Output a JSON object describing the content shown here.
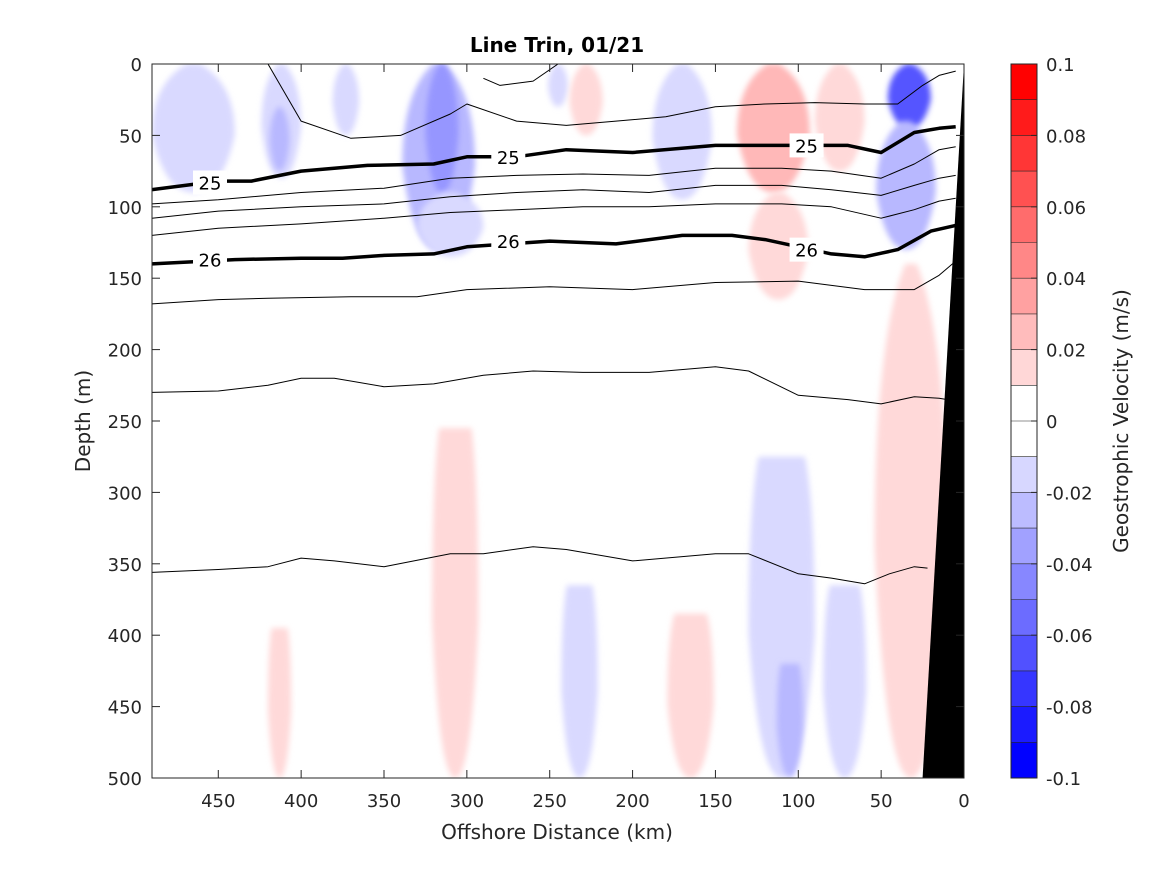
{
  "chart_data": {
    "type": "heatmap",
    "title": "Line Trin, 01/21",
    "xlabel": "Offshore Distance (km)",
    "ylabel": "Depth (m)",
    "xlim": [
      490,
      0
    ],
    "ylim": [
      0,
      500
    ],
    "x_reversed": true,
    "y_reversed": true,
    "xticks": [
      450,
      400,
      350,
      300,
      250,
      200,
      150,
      100,
      50,
      0
    ],
    "yticks": [
      0,
      50,
      100,
      150,
      200,
      250,
      300,
      350,
      400,
      450,
      500
    ],
    "colorbar": {
      "label": "Geostrophic Velocity (m/s)",
      "ticks": [
        "0.1",
        "0.08",
        "0.06",
        "0.04",
        "0.02",
        "0",
        "-0.02",
        "-0.04",
        "-0.06",
        "-0.08",
        "-0.1"
      ],
      "range": [
        -0.1,
        0.1
      ],
      "levels": 20,
      "positive_color": "#ff0000",
      "negative_color": "#0000ff",
      "zero_color": "#ffffff"
    },
    "density_contours": [
      {
        "label": "",
        "bold": false,
        "x": [
          420,
          400,
          370,
          340,
          310,
          300,
          270,
          240,
          210,
          180,
          150,
          120,
          90,
          60,
          40,
          25,
          15,
          5
        ],
        "depth": [
          0,
          40,
          52,
          50,
          35,
          28,
          40,
          43,
          40,
          37,
          30,
          28,
          27,
          28,
          28,
          15,
          8,
          5
        ]
      },
      {
        "label": "",
        "bold": false,
        "x": [
          290,
          280,
          260,
          245
        ],
        "depth": [
          10,
          15,
          12,
          0
        ]
      },
      {
        "label": "25",
        "bold": true,
        "x": [
          490,
          450,
          430,
          400,
          360,
          320,
          300,
          270,
          240,
          200,
          150,
          120,
          70,
          50,
          30,
          15,
          5
        ],
        "depth": [
          88,
          82,
          82,
          75,
          71,
          70,
          65,
          65,
          60,
          62,
          57,
          57,
          57,
          62,
          48,
          45,
          44
        ]
      },
      {
        "label": "",
        "bold": false,
        "x": [
          490,
          450,
          400,
          350,
          310,
          270,
          230,
          190,
          150,
          110,
          80,
          50,
          30,
          15,
          5
        ],
        "depth": [
          98,
          95,
          90,
          87,
          80,
          78,
          77,
          78,
          73,
          73,
          75,
          80,
          70,
          60,
          58
        ]
      },
      {
        "label": "",
        "bold": false,
        "x": [
          490,
          450,
          400,
          350,
          310,
          270,
          230,
          190,
          150,
          110,
          80,
          50,
          30,
          15,
          5
        ],
        "depth": [
          108,
          103,
          100,
          98,
          93,
          90,
          88,
          90,
          85,
          85,
          88,
          92,
          85,
          80,
          78
        ]
      },
      {
        "label": "",
        "bold": false,
        "x": [
          490,
          450,
          400,
          350,
          310,
          270,
          230,
          190,
          150,
          110,
          80,
          50,
          30,
          15,
          5
        ],
        "depth": [
          120,
          115,
          112,
          108,
          104,
          102,
          100,
          100,
          98,
          98,
          100,
          108,
          102,
          96,
          94
        ]
      },
      {
        "label": "26",
        "bold": true,
        "x": [
          490,
          440,
          400,
          375,
          350,
          320,
          300,
          250,
          210,
          170,
          140,
          120,
          80,
          60,
          40,
          20,
          5
        ],
        "depth": [
          140,
          137,
          136,
          136,
          134,
          133,
          128,
          124,
          126,
          120,
          120,
          123,
          133,
          135,
          130,
          117,
          113
        ]
      },
      {
        "label": "",
        "bold": false,
        "x": [
          490,
          450,
          420,
          370,
          330,
          300,
          250,
          200,
          150,
          100,
          60,
          30,
          15,
          5
        ],
        "depth": [
          168,
          165,
          164,
          163,
          163,
          158,
          156,
          158,
          153,
          152,
          158,
          158,
          148,
          138
        ]
      },
      {
        "label": "",
        "bold": false,
        "x": [
          490,
          450,
          420,
          400,
          380,
          350,
          320,
          290,
          260,
          230,
          190,
          150,
          130,
          100,
          70,
          50,
          30,
          15,
          5
        ],
        "depth": [
          230,
          229,
          225,
          220,
          220,
          226,
          224,
          218,
          215,
          216,
          216,
          212,
          215,
          232,
          235,
          238,
          233,
          234,
          236
        ]
      },
      {
        "label": "",
        "bold": false,
        "x": [
          490,
          450,
          420,
          400,
          380,
          350,
          310,
          290,
          260,
          240,
          200,
          150,
          130,
          100,
          80,
          60,
          45,
          30,
          22
        ],
        "depth": [
          356,
          354,
          352,
          346,
          348,
          352,
          343,
          343,
          338,
          340,
          348,
          343,
          343,
          357,
          360,
          364,
          357,
          352,
          353
        ]
      }
    ],
    "contour_labels": [
      {
        "text": "25",
        "x": 455,
        "depth": 83
      },
      {
        "text": "25",
        "x": 275,
        "depth": 65
      },
      {
        "text": "25",
        "x": 95,
        "depth": 57
      },
      {
        "text": "26",
        "x": 455,
        "depth": 137
      },
      {
        "text": "26",
        "x": 275,
        "depth": 124
      },
      {
        "text": "26",
        "x": 95,
        "depth": 130
      }
    ],
    "shelf_bathymetry": {
      "x": [
        0,
        0,
        25,
        0
      ],
      "depth": [
        0,
        500,
        500,
        0
      ]
    },
    "velocity_features": [
      {
        "sign": -1,
        "level": 1,
        "x_center": 465,
        "x_halfwidth": 25,
        "depth_top": 0,
        "depth_bottom": 90
      },
      {
        "sign": -1,
        "level": 1,
        "x_center": 412,
        "x_halfwidth": 12,
        "depth_top": 0,
        "depth_bottom": 80
      },
      {
        "sign": -1,
        "level": 2,
        "x_center": 413,
        "x_halfwidth": 6,
        "depth_top": 30,
        "depth_bottom": 75
      },
      {
        "sign": -1,
        "level": 1,
        "x_center": 373,
        "x_halfwidth": 8,
        "depth_top": 0,
        "depth_bottom": 50
      },
      {
        "sign": -1,
        "level": 2,
        "x_center": 317,
        "x_halfwidth": 22,
        "depth_top": 0,
        "depth_bottom": 130
      },
      {
        "sign": -1,
        "level": 3,
        "x_center": 315,
        "x_halfwidth": 10,
        "depth_top": 0,
        "depth_bottom": 90
      },
      {
        "sign": -1,
        "level": 1,
        "x_center": 310,
        "x_halfwidth": 20,
        "depth_top": 90,
        "depth_bottom": 135
      },
      {
        "sign": -1,
        "level": 1,
        "x_center": 245,
        "x_halfwidth": 6,
        "depth_top": 0,
        "depth_bottom": 30
      },
      {
        "sign": 1,
        "level": 1,
        "x_center": 228,
        "x_halfwidth": 10,
        "depth_top": 0,
        "depth_bottom": 50
      },
      {
        "sign": -1,
        "level": 1,
        "x_center": 170,
        "x_halfwidth": 18,
        "depth_top": 0,
        "depth_bottom": 95
      },
      {
        "sign": 1,
        "level": 2,
        "x_center": 115,
        "x_halfwidth": 22,
        "depth_top": 0,
        "depth_bottom": 90
      },
      {
        "sign": 1,
        "level": 1,
        "x_center": 112,
        "x_halfwidth": 18,
        "depth_top": 90,
        "depth_bottom": 165
      },
      {
        "sign": 1,
        "level": 1,
        "x_center": 75,
        "x_halfwidth": 15,
        "depth_top": 0,
        "depth_bottom": 75
      },
      {
        "sign": -1,
        "level": 5,
        "x_center": 33,
        "x_halfwidth": 13,
        "depth_top": 0,
        "depth_bottom": 45
      },
      {
        "sign": -1,
        "level": 2,
        "x_center": 35,
        "x_halfwidth": 18,
        "depth_top": 40,
        "depth_bottom": 130
      },
      {
        "sign": 1,
        "level": 1,
        "x_center": 32,
        "x_halfwidth": 22,
        "depth_top": 140,
        "depth_bottom": 500
      },
      {
        "sign": 1,
        "level": 1,
        "x_center": 307,
        "x_halfwidth": 14,
        "depth_top": 255,
        "depth_bottom": 500
      },
      {
        "sign": 1,
        "level": 1,
        "x_center": 413,
        "x_halfwidth": 7,
        "depth_top": 395,
        "depth_bottom": 500
      },
      {
        "sign": -1,
        "level": 1,
        "x_center": 232,
        "x_halfwidth": 11,
        "depth_top": 365,
        "depth_bottom": 500
      },
      {
        "sign": 1,
        "level": 1,
        "x_center": 165,
        "x_halfwidth": 14,
        "depth_top": 385,
        "depth_bottom": 500
      },
      {
        "sign": -1,
        "level": 1,
        "x_center": 110,
        "x_halfwidth": 20,
        "depth_top": 275,
        "depth_bottom": 500
      },
      {
        "sign": -1,
        "level": 2,
        "x_center": 105,
        "x_halfwidth": 8,
        "depth_top": 420,
        "depth_bottom": 500
      },
      {
        "sign": -1,
        "level": 1,
        "x_center": 72,
        "x_halfwidth": 13,
        "depth_top": 365,
        "depth_bottom": 500
      }
    ]
  }
}
